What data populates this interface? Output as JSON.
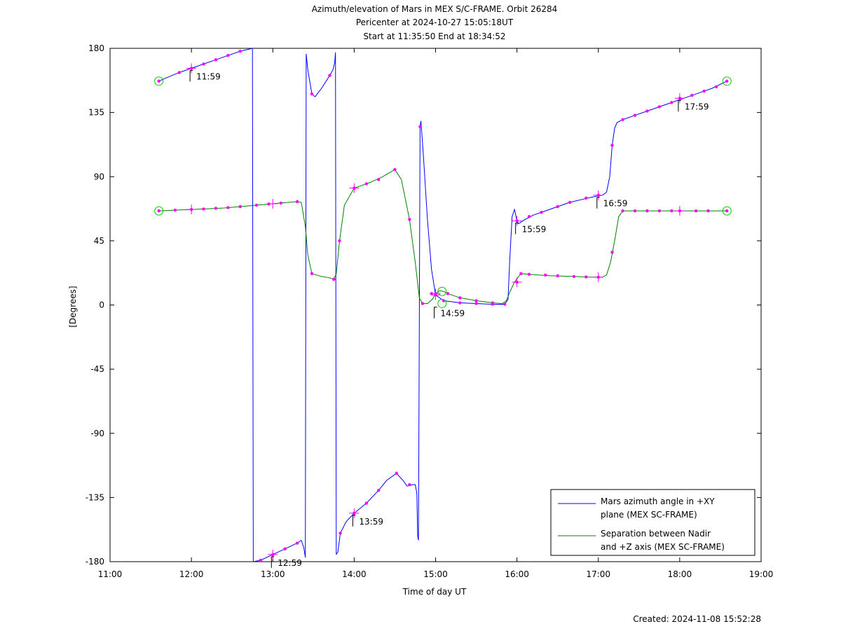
{
  "chart_data": {
    "type": "line",
    "title": [
      "Azimuth/elevation of Mars in MEX S/C-FRAME.  Orbit 26284",
      "Pericenter at 2024-10-27 15:05:18UT",
      "Start at 11:35:50 End at 18:34:52"
    ],
    "xlabel": "Time of day UT",
    "ylabel": "[Degrees]",
    "footer": "Created: 2024-11-08 15:52:28",
    "xlim": [
      11.0,
      19.0
    ],
    "ylim": [
      -180,
      180
    ],
    "x_ticks": [
      {
        "value": 11,
        "label": "11:00"
      },
      {
        "value": 12,
        "label": "12:00"
      },
      {
        "value": 13,
        "label": "13:00"
      },
      {
        "value": 14,
        "label": "14:00"
      },
      {
        "value": 15,
        "label": "15:00"
      },
      {
        "value": 16,
        "label": "16:00"
      },
      {
        "value": 17,
        "label": "17:00"
      },
      {
        "value": 18,
        "label": "18:00"
      },
      {
        "value": 19,
        "label": "19:00"
      }
    ],
    "y_ticks": [
      {
        "value": 180,
        "label": "180"
      },
      {
        "value": 135,
        "label": "135"
      },
      {
        "value": 90,
        "label": "90"
      },
      {
        "value": 45,
        "label": "45"
      },
      {
        "value": 0,
        "label": "0"
      },
      {
        "value": -45,
        "label": "-45"
      },
      {
        "value": -90,
        "label": "-90"
      },
      {
        "value": -135,
        "label": "-135"
      },
      {
        "value": -180,
        "label": "-180"
      }
    ],
    "grid": false,
    "legend_position": "bottom-right",
    "series": [
      {
        "name": "Mars azimuth angle in +XY plane (MEX SC-FRAME)",
        "legend_lines": [
          "Mars azimuth angle in +XY",
          "plane (MEX SC-FRAME)"
        ],
        "color": "#0000ff",
        "segments": [
          [
            [
              11.6,
              157
            ],
            [
              11.7,
              159.5
            ],
            [
              11.85,
              163
            ],
            [
              12.0,
              166
            ],
            [
              12.15,
              169
            ],
            [
              12.3,
              172
            ],
            [
              12.45,
              175
            ],
            [
              12.6,
              178
            ],
            [
              12.75,
              180
            ]
          ],
          [
            [
              12.75,
              180
            ],
            [
              12.76,
              -180
            ]
          ],
          [
            [
              12.76,
              -180
            ],
            [
              12.85,
              -179
            ],
            [
              13.0,
              -175
            ],
            [
              13.15,
              -171
            ],
            [
              13.3,
              -167
            ],
            [
              13.35,
              -165
            ],
            [
              13.38,
              -170
            ],
            [
              13.4,
              -177
            ]
          ],
          [
            [
              13.4,
              -177
            ],
            [
              13.41,
              176
            ]
          ],
          [
            [
              13.41,
              176
            ],
            [
              13.43,
              165
            ],
            [
              13.48,
              148
            ],
            [
              13.52,
              146
            ],
            [
              13.6,
              152
            ],
            [
              13.7,
              161
            ],
            [
              13.74,
              165
            ],
            [
              13.76,
              170
            ],
            [
              13.77,
              177
            ]
          ],
          [
            [
              13.77,
              177
            ],
            [
              13.78,
              -175
            ]
          ],
          [
            [
              13.78,
              -175
            ],
            [
              13.8,
              -173
            ],
            [
              13.83,
              -160
            ],
            [
              13.9,
              -152
            ],
            [
              14.0,
              -146
            ],
            [
              14.15,
              -139
            ],
            [
              14.3,
              -130
            ],
            [
              14.4,
              -123
            ],
            [
              14.52,
              -118
            ],
            [
              14.6,
              -123
            ],
            [
              14.65,
              -127
            ],
            [
              14.72,
              -126
            ],
            [
              14.75,
              -126
            ],
            [
              14.77,
              -132
            ],
            [
              14.78,
              -162
            ]
          ],
          [
            [
              14.78,
              -162
            ],
            [
              14.79,
              -165
            ],
            [
              14.81,
              125
            ]
          ],
          [
            [
              14.81,
              125
            ],
            [
              14.82,
              129
            ],
            [
              14.85,
              105
            ],
            [
              14.9,
              60
            ],
            [
              14.95,
              25
            ],
            [
              15.0,
              7
            ],
            [
              15.1,
              3
            ],
            [
              15.3,
              1.5
            ],
            [
              15.5,
              1
            ],
            [
              15.7,
              0.5
            ],
            [
              15.85,
              0.5
            ],
            [
              15.89,
              4
            ],
            [
              15.91,
              30
            ],
            [
              15.94,
              62
            ],
            [
              15.97,
              67
            ],
            [
              16.0,
              59
            ],
            [
              16.02,
              57
            ],
            [
              16.1,
              60
            ],
            [
              16.2,
              63
            ],
            [
              16.35,
              66
            ],
            [
              16.5,
              69
            ],
            [
              16.65,
              72
            ],
            [
              16.8,
              74
            ],
            [
              16.95,
              76
            ],
            [
              17.05,
              77
            ],
            [
              17.1,
              79
            ],
            [
              17.14,
              90
            ],
            [
              17.17,
              112
            ],
            [
              17.2,
              124
            ],
            [
              17.23,
              128
            ],
            [
              17.3,
              130
            ],
            [
              17.45,
              133
            ],
            [
              17.6,
              136
            ],
            [
              17.75,
              139
            ],
            [
              17.9,
              142
            ],
            [
              18.05,
              145
            ],
            [
              18.2,
              148
            ],
            [
              18.4,
              152
            ],
            [
              18.58,
              157
            ]
          ]
        ]
      },
      {
        "name": "Separation between Nadir and +Z axis (MEX SC-FRAME)",
        "legend_lines": [
          "Separation between Nadir",
          "and +Z axis (MEX SC-FRAME)"
        ],
        "color": "#008000",
        "segments": [
          [
            [
              11.6,
              66
            ],
            [
              11.8,
              66.5
            ],
            [
              12.0,
              67
            ],
            [
              12.2,
              67.5
            ],
            [
              12.4,
              68
            ],
            [
              12.6,
              69
            ],
            [
              12.8,
              70
            ],
            [
              13.0,
              71
            ],
            [
              13.2,
              72
            ],
            [
              13.3,
              72.5
            ],
            [
              13.35,
              72
            ],
            [
              13.4,
              55
            ],
            [
              13.43,
              35
            ],
            [
              13.48,
              22
            ],
            [
              13.6,
              20
            ],
            [
              13.7,
              19
            ],
            [
              13.75,
              18
            ],
            [
              13.78,
              22
            ],
            [
              13.82,
              45
            ],
            [
              13.88,
              70
            ],
            [
              14.0,
              82
            ],
            [
              14.2,
              86
            ],
            [
              14.35,
              90
            ],
            [
              14.5,
              95
            ],
            [
              14.58,
              88
            ],
            [
              14.68,
              60
            ],
            [
              14.75,
              30
            ],
            [
              14.8,
              5
            ],
            [
              14.84,
              1
            ],
            [
              14.9,
              1
            ],
            [
              14.96,
              4
            ],
            [
              15.0,
              8
            ],
            [
              15.05,
              10
            ],
            [
              15.1,
              9.5
            ],
            [
              15.15,
              8
            ],
            [
              15.3,
              5
            ],
            [
              15.5,
              3
            ],
            [
              15.7,
              1.5
            ],
            [
              15.82,
              1
            ],
            [
              15.87,
              3
            ],
            [
              15.92,
              10
            ],
            [
              15.97,
              16
            ],
            [
              16.02,
              20
            ],
            [
              16.05,
              22
            ],
            [
              16.15,
              21.5
            ],
            [
              16.4,
              20.5
            ],
            [
              16.7,
              20
            ],
            [
              16.9,
              19.5
            ],
            [
              17.05,
              19.5
            ],
            [
              17.1,
              21
            ],
            [
              17.15,
              30
            ],
            [
              17.2,
              45
            ],
            [
              17.25,
              62
            ],
            [
              17.3,
              66
            ],
            [
              17.5,
              66
            ],
            [
              17.8,
              66
            ],
            [
              18.0,
              66
            ],
            [
              18.3,
              66
            ],
            [
              18.58,
              66
            ]
          ]
        ]
      }
    ],
    "markers": [
      [
        11.6,
        157
      ],
      [
        11.85,
        163
      ],
      [
        12.0,
        166
      ],
      [
        12.15,
        169
      ],
      [
        12.3,
        172
      ],
      [
        12.45,
        175
      ],
      [
        12.6,
        178
      ],
      [
        12.85,
        -179
      ],
      [
        13.0,
        -175
      ],
      [
        13.15,
        -171
      ],
      [
        13.3,
        -167
      ],
      [
        13.48,
        148
      ],
      [
        13.7,
        161
      ],
      [
        13.83,
        -160
      ],
      [
        14.0,
        -146
      ],
      [
        14.15,
        -139
      ],
      [
        14.3,
        -130
      ],
      [
        14.52,
        -118
      ],
      [
        14.68,
        -126
      ],
      [
        14.81,
        125
      ],
      [
        14.95,
        8
      ],
      [
        15.0,
        7
      ],
      [
        15.1,
        3
      ],
      [
        15.3,
        1.5
      ],
      [
        15.5,
        1
      ],
      [
        15.7,
        0.5
      ],
      [
        15.85,
        0.5
      ],
      [
        16.0,
        59
      ],
      [
        16.15,
        62
      ],
      [
        16.3,
        65
      ],
      [
        16.5,
        69
      ],
      [
        16.65,
        72
      ],
      [
        16.85,
        75
      ],
      [
        17.0,
        77
      ],
      [
        17.17,
        112
      ],
      [
        17.3,
        130
      ],
      [
        17.45,
        133
      ],
      [
        17.6,
        136
      ],
      [
        17.75,
        139
      ],
      [
        17.9,
        142
      ],
      [
        18.0,
        145
      ],
      [
        18.15,
        147
      ],
      [
        18.3,
        150
      ],
      [
        18.45,
        153
      ],
      [
        18.58,
        157
      ],
      [
        11.6,
        66
      ],
      [
        11.8,
        66.5
      ],
      [
        12.0,
        67
      ],
      [
        12.15,
        67.3
      ],
      [
        12.3,
        67.8
      ],
      [
        12.45,
        68.3
      ],
      [
        12.6,
        69
      ],
      [
        12.8,
        70
      ],
      [
        12.95,
        70.8
      ],
      [
        13.1,
        71.5
      ],
      [
        13.3,
        72.5
      ],
      [
        13.48,
        22
      ],
      [
        13.75,
        18
      ],
      [
        13.82,
        45
      ],
      [
        14.0,
        82
      ],
      [
        14.15,
        85
      ],
      [
        14.3,
        88
      ],
      [
        14.5,
        95
      ],
      [
        14.68,
        60
      ],
      [
        14.84,
        1
      ],
      [
        15.0,
        8
      ],
      [
        15.15,
        8
      ],
      [
        15.3,
        5
      ],
      [
        15.5,
        3
      ],
      [
        15.7,
        1.5
      ],
      [
        16.0,
        16
      ],
      [
        16.05,
        22
      ],
      [
        16.15,
        21.5
      ],
      [
        16.35,
        21
      ],
      [
        16.5,
        20.5
      ],
      [
        16.7,
        20
      ],
      [
        16.85,
        19.7
      ],
      [
        17.0,
        19.5
      ],
      [
        17.17,
        37
      ],
      [
        17.3,
        66
      ],
      [
        17.45,
        66
      ],
      [
        17.6,
        66
      ],
      [
        17.75,
        66
      ],
      [
        17.9,
        66
      ],
      [
        18.0,
        66
      ],
      [
        18.2,
        66
      ],
      [
        18.35,
        66
      ],
      [
        18.58,
        66
      ]
    ],
    "crosses": [
      [
        12.0,
        166
      ],
      [
        13.0,
        -175
      ],
      [
        14.0,
        -146
      ],
      [
        15.0,
        7
      ],
      [
        16.0,
        59
      ],
      [
        17.0,
        77
      ],
      [
        18.0,
        145
      ],
      [
        12.0,
        67
      ],
      [
        13.0,
        71
      ],
      [
        14.0,
        82
      ],
      [
        15.0,
        8
      ],
      [
        16.0,
        16
      ],
      [
        17.0,
        19.5
      ],
      [
        18.0,
        66
      ]
    ],
    "circles": [
      [
        11.6,
        157
      ],
      [
        18.58,
        157
      ],
      [
        11.6,
        66
      ],
      [
        18.58,
        66
      ],
      [
        15.08,
        1
      ],
      [
        15.08,
        9.5
      ]
    ],
    "annotations": [
      {
        "x": 11.983,
        "y": 166,
        "label": "11:59"
      },
      {
        "x": 12.983,
        "y": -175,
        "label": "12:59"
      },
      {
        "x": 13.983,
        "y": -146,
        "label": "13:59"
      },
      {
        "x": 14.983,
        "y": 0,
        "label": "14:59"
      },
      {
        "x": 15.983,
        "y": 59,
        "label": "15:59"
      },
      {
        "x": 16.983,
        "y": 77,
        "label": "16:59"
      },
      {
        "x": 17.983,
        "y": 145,
        "label": "17:59"
      }
    ]
  }
}
